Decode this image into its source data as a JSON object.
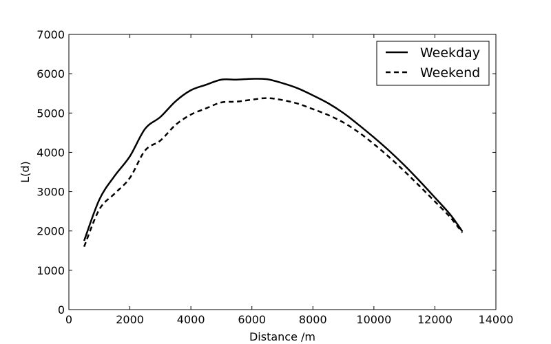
{
  "chart_data": {
    "type": "line",
    "title": "",
    "xlabel": "Distance /m",
    "ylabel": "L(d)",
    "xlim": [
      0,
      14000
    ],
    "ylim": [
      0,
      7000
    ],
    "xticks": [
      0,
      2000,
      4000,
      6000,
      8000,
      10000,
      12000,
      14000
    ],
    "yticks": [
      0,
      1000,
      2000,
      3000,
      4000,
      5000,
      6000,
      7000
    ],
    "xtick_labels": [
      "0",
      "2000",
      "4000",
      "6000",
      "8000",
      "10000",
      "12000",
      "14000"
    ],
    "ytick_labels": [
      "0",
      "1000",
      "2000",
      "3000",
      "4000",
      "5000",
      "6000",
      "7000"
    ],
    "grid": false,
    "legend_position": "top-right",
    "series": [
      {
        "name": "Weekday",
        "style": "solid",
        "color": "#000000",
        "x": [
          500,
          1000,
          1500,
          2000,
          2500,
          3000,
          3500,
          4000,
          4500,
          5000,
          5500,
          6000,
          6500,
          7000,
          7500,
          8000,
          8500,
          9000,
          9500,
          10000,
          10500,
          11000,
          11500,
          12000,
          12500,
          12900
        ],
        "y": [
          1750,
          2800,
          3400,
          3900,
          4600,
          4900,
          5300,
          5580,
          5720,
          5850,
          5850,
          5870,
          5860,
          5760,
          5630,
          5450,
          5250,
          5000,
          4700,
          4380,
          4040,
          3670,
          3270,
          2850,
          2420,
          1990
        ]
      },
      {
        "name": "Weekend",
        "style": "dashed",
        "color": "#000000",
        "x": [
          500,
          1000,
          1500,
          2000,
          2500,
          3000,
          3500,
          4000,
          4500,
          5000,
          5500,
          6000,
          6500,
          7000,
          7500,
          8000,
          8500,
          9000,
          9500,
          10000,
          10500,
          11000,
          11500,
          12000,
          12500,
          12900
        ],
        "y": [
          1600,
          2550,
          2950,
          3350,
          4050,
          4300,
          4700,
          4960,
          5120,
          5270,
          5290,
          5340,
          5380,
          5330,
          5240,
          5100,
          4950,
          4760,
          4510,
          4210,
          3880,
          3520,
          3140,
          2750,
          2350,
          1960
        ]
      }
    ]
  }
}
